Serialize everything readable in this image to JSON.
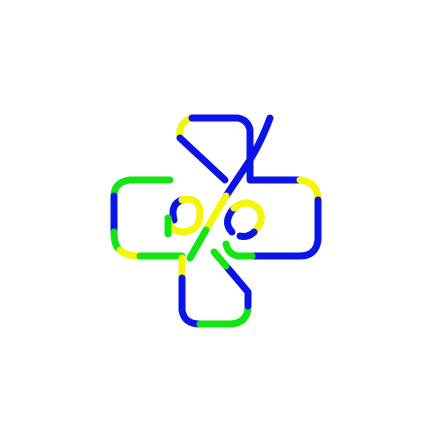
{
  "colors": {
    "background": "#ffffff",
    "blue": "#0a14e6",
    "green": "#12e612",
    "yellow": "#f5f50a"
  },
  "puzzle": {
    "type": "colored-pipe-loop-knot",
    "segment_color_sequence": [
      "blue",
      "yellow",
      "green",
      "yellow",
      "blue",
      "green",
      "blue",
      "yellow",
      "green",
      "blue"
    ]
  }
}
